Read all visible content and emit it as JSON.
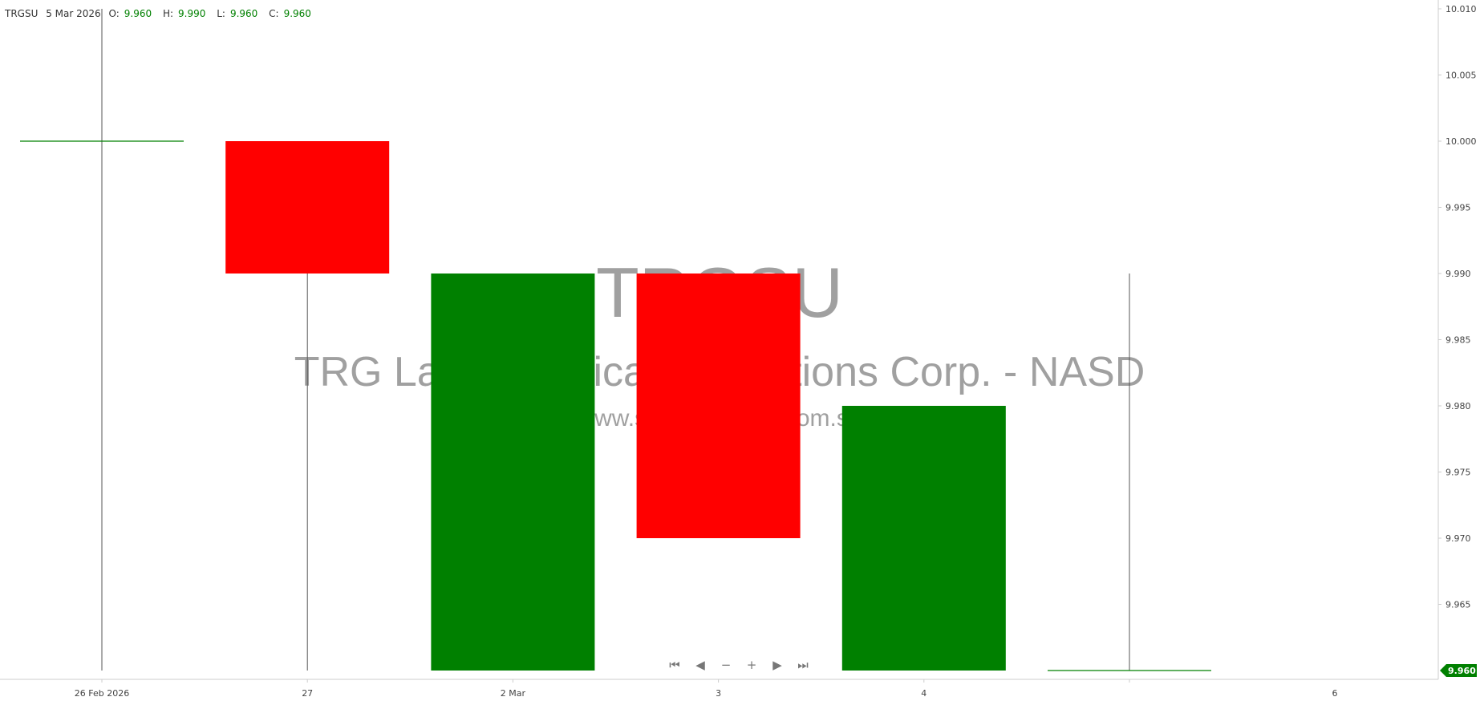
{
  "legend": {
    "symbol": "TRGSU",
    "date": "5 Mar 2026",
    "o_label": "O:",
    "o": "9.960",
    "h_label": "H:",
    "h": "9.990",
    "l_label": "L:",
    "l": "9.960",
    "c_label": "C:",
    "c": "9.960"
  },
  "watermark": {
    "ticker": "TRGSU",
    "name": "TRG Latin America Acquisitions Corp. - NASD",
    "site": "www.shareinvestor.com.sg"
  },
  "nav": [
    {
      "name": "go-start",
      "glyph": "⏮"
    },
    {
      "name": "scroll-left",
      "glyph": "◀"
    },
    {
      "name": "zoom-out",
      "glyph": "−"
    },
    {
      "name": "zoom-in",
      "glyph": "+"
    },
    {
      "name": "scroll-right",
      "glyph": "▶"
    },
    {
      "name": "go-end",
      "glyph": "⏭"
    }
  ],
  "colors": {
    "up": "#008000",
    "down": "#ff0000",
    "wick": "#555555",
    "axis": "#cccccc",
    "watermark": "#a0a0a0"
  },
  "chart_data": {
    "type": "candlestick",
    "ylim": [
      9.96,
      10.01
    ],
    "yticks": [
      "10.010",
      "10.005",
      "10.000",
      "9.995",
      "9.990",
      "9.985",
      "9.980",
      "9.975",
      "9.970",
      "9.965"
    ],
    "last_price": "9.960",
    "candles": [
      {
        "date": "26 Feb 2026",
        "label": "26 Feb 2026",
        "o": 10.0,
        "h": 10.01,
        "l": 9.96,
        "c": 10.0
      },
      {
        "date": "27 Feb 2026",
        "label": "27",
        "o": 10.0,
        "h": 10.0,
        "l": 9.96,
        "c": 9.99
      },
      {
        "date": "2 Mar 2026",
        "label": "2 Mar",
        "o": 9.96,
        "h": 9.99,
        "l": 9.96,
        "c": 9.99
      },
      {
        "date": "3 Mar 2026",
        "label": "3",
        "o": 9.99,
        "h": 9.99,
        "l": 9.97,
        "c": 9.97
      },
      {
        "date": "4 Mar 2026",
        "label": "4",
        "o": 9.96,
        "h": 9.98,
        "l": 9.96,
        "c": 9.98
      },
      {
        "date": "5 Mar 2026",
        "label": "",
        "o": 9.96,
        "h": 9.99,
        "l": 9.96,
        "c": 9.96
      }
    ],
    "extra_xlabels": [
      {
        "label": "6",
        "index": 7
      }
    ]
  }
}
